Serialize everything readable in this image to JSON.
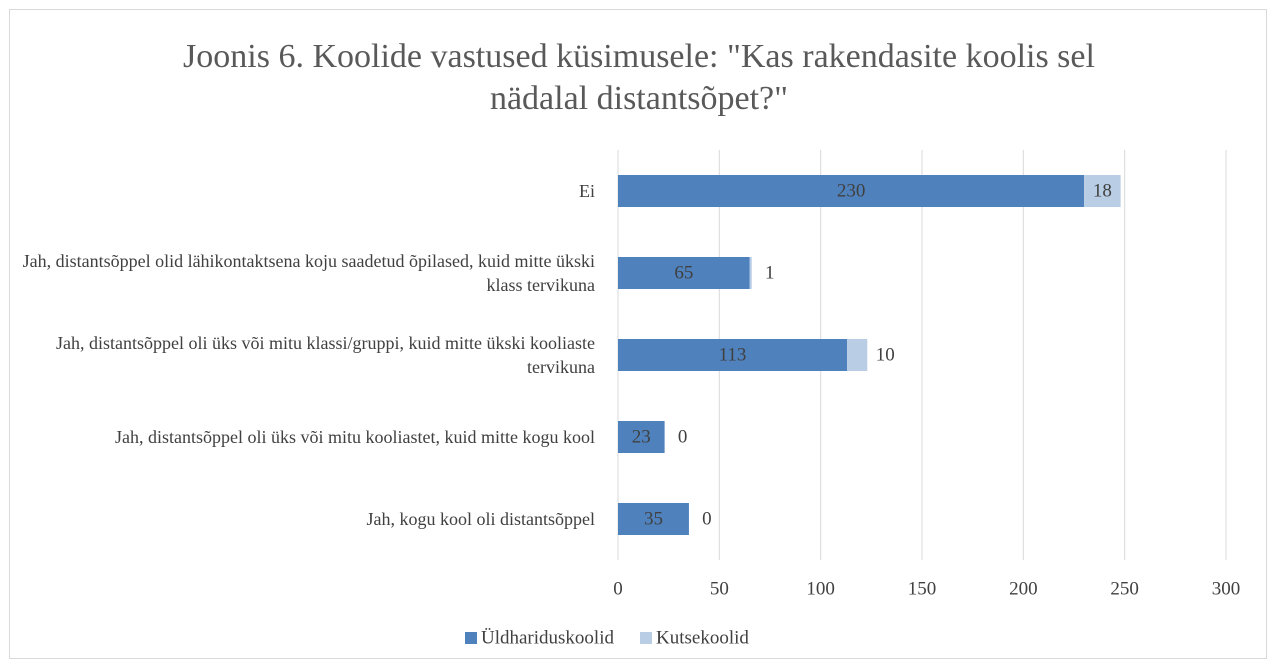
{
  "chart_data": {
    "type": "bar",
    "orientation": "horizontal",
    "stacked": true,
    "title": "Joonis 6. Koolide vastused küsimusele: \"Kas rakendasite koolis sel nädalal distantsõpet?\"",
    "categories": [
      "Ei",
      "Jah, distantsõppel olid lähikontaktsena koju saadetud õpilased, kuid mitte ükski klass tervikuna",
      "Jah, distantsõppel oli üks või mitu klassi/gruppi, kuid mitte ükski kooliaste tervikuna",
      "Jah, distantsõppel oli üks või mitu kooliastet, kuid mitte kogu kool",
      "Jah, kogu kool oli distantsõppel"
    ],
    "series": [
      {
        "name": "Üldhariduskoolid",
        "color": "#4f81bd",
        "values": [
          230,
          65,
          113,
          23,
          35
        ]
      },
      {
        "name": "Kutsekoolid",
        "color": "#b9cde5",
        "values": [
          18,
          1,
          10,
          0,
          0
        ]
      }
    ],
    "xlim": [
      0,
      300
    ],
    "xticks": [
      0,
      50,
      100,
      150,
      200,
      250,
      300
    ],
    "grid": true,
    "legend": "bottom"
  }
}
